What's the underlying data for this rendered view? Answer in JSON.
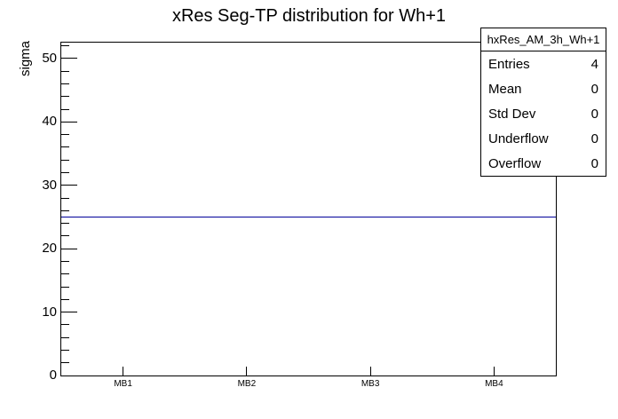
{
  "title": "xRes Seg-TP distribution for Wh+1",
  "stats_box": {
    "header": "hxRes_AM_3h_Wh+1",
    "rows": [
      {
        "label": "Entries",
        "value": "4"
      },
      {
        "label": "Mean",
        "value": "0"
      },
      {
        "label": "Std Dev",
        "value": "0"
      },
      {
        "label": "Underflow",
        "value": "0"
      },
      {
        "label": "Overflow",
        "value": "0"
      }
    ]
  },
  "chart_data": {
    "type": "line",
    "title": "xRes Seg-TP distribution for Wh+1",
    "xlabel": "",
    "ylabel": "sigma",
    "categories": [
      "MB1",
      "MB2",
      "MB3",
      "MB4"
    ],
    "values": [
      25,
      25,
      25,
      25
    ],
    "line_value": 25,
    "line_color": "#000099",
    "ylim": [
      0,
      52.5
    ],
    "y_major_ticks": [
      0,
      10,
      20,
      30,
      40,
      50
    ],
    "y_minor_step": 2,
    "grid": false,
    "legend": false
  }
}
